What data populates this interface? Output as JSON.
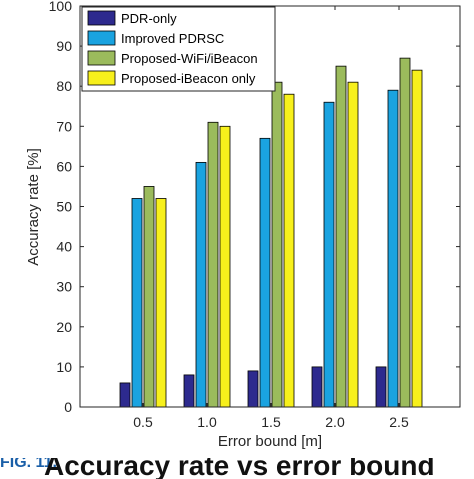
{
  "chart_data": {
    "type": "bar",
    "categories": [
      "0.5",
      "1.0",
      "1.5",
      "2.0",
      "2.5"
    ],
    "series": [
      {
        "name": "PDR-only",
        "color": "#2d2a8e",
        "values": [
          6,
          8,
          9,
          10,
          10
        ]
      },
      {
        "name": "Improved PDRSC",
        "color": "#1aa3e0",
        "values": [
          52,
          61,
          67,
          76,
          79
        ]
      },
      {
        "name": "Proposed-WiFi/iBeacon",
        "color": "#9bbb5c",
        "values": [
          55,
          71,
          81,
          85,
          87
        ]
      },
      {
        "name": "Proposed-iBeacon only",
        "color": "#f7f01c",
        "values": [
          52,
          70,
          78,
          81,
          84
        ]
      }
    ],
    "xlabel": "Error bound [m]",
    "ylabel": "Accuracy rate [%]",
    "ylim": [
      0,
      100
    ],
    "yticks": [
      "0",
      "10",
      "20",
      "30",
      "40",
      "50",
      "60",
      "70",
      "80",
      "90",
      "100"
    ],
    "legend_position": "top-left",
    "grid": false
  },
  "caption": {
    "tag": "FIG. 11.",
    "text": "Accuracy rate vs error bound"
  }
}
